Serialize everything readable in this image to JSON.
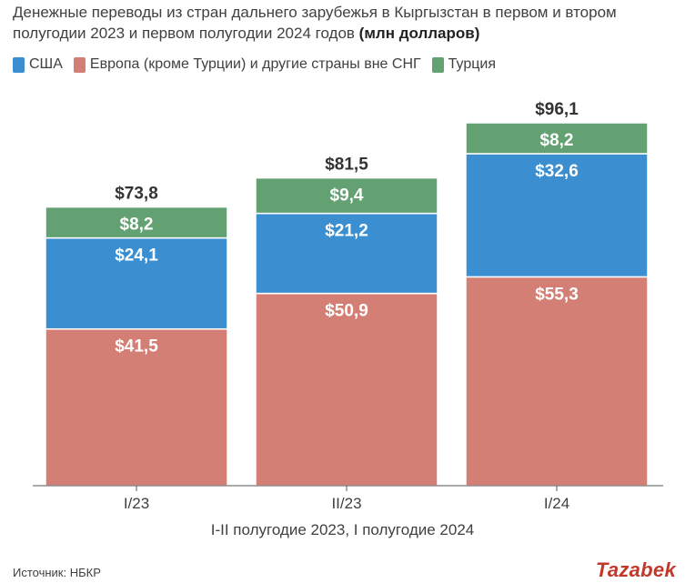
{
  "title": "Денежные переводы из стран дальнего зарубежья в Кыргызстан в первом и втором полугодии 2023 и первом полугодии 2024 годов",
  "title_unit": "(млн долларов)",
  "source": "Источник: НБКР",
  "brand": "Tazabek",
  "colors": {
    "usa": "#3b8fd0",
    "europe": "#d47f75",
    "turkey": "#63a072",
    "brand": "#c0392b"
  },
  "chart_data": {
    "type": "bar",
    "stacked": true,
    "categories": [
      "I/23",
      "II/23",
      "I/24"
    ],
    "series": [
      {
        "name": "США",
        "values": [
          24.1,
          21.2,
          32.6
        ],
        "labels": [
          "$24,1",
          "$21,2",
          "$32,6"
        ]
      },
      {
        "name": "Европа (кроме Турции) и другие страны вне СНГ",
        "values": [
          41.5,
          50.9,
          55.3
        ],
        "labels": [
          "$41,5",
          "$50,9",
          "$55,3"
        ]
      },
      {
        "name": "Турция",
        "values": [
          8.2,
          9.4,
          8.2
        ],
        "labels": [
          "$8,2",
          "$9,4",
          "$8,2"
        ]
      }
    ],
    "totals": [
      73.8,
      81.5,
      96.1
    ],
    "total_labels": [
      "$73,8",
      "$81,5",
      "$96,1"
    ],
    "xlabel": "I-II полугодие 2023, I полугодие 2024",
    "ylabel": "",
    "ylim": [
      0,
      96.1
    ],
    "grid": false,
    "legend": "top-left"
  }
}
